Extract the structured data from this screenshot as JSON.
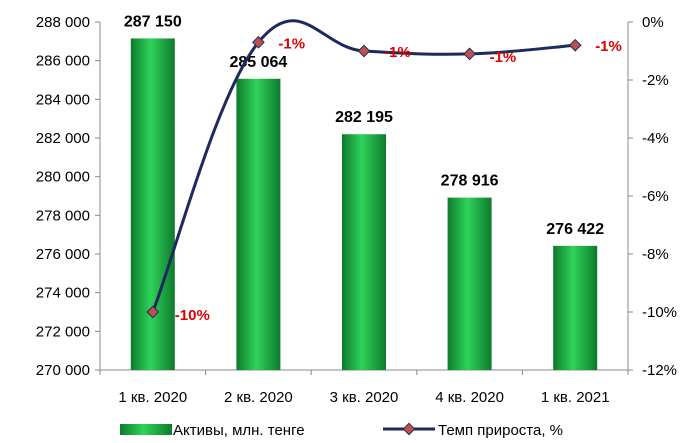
{
  "chart_data": {
    "type": "bar",
    "categories": [
      "1 кв. 2020",
      "2 кв. 2020",
      "3 кв. 2020",
      "4 кв. 2020",
      "1 кв. 2021"
    ],
    "series": [
      {
        "name": "Активы, млн. тенге",
        "type": "bar",
        "axis": "left",
        "values": [
          287150,
          285064,
          282195,
          278916,
          276422
        ],
        "labels": [
          "287 150",
          "285 064",
          "282 195",
          "278 916",
          "276 422"
        ]
      },
      {
        "name": "Темп прироста, %",
        "type": "line",
        "axis": "right",
        "values": [
          -10.0,
          -0.7,
          -1.0,
          -1.1,
          -0.8
        ],
        "labels": [
          "-10%",
          "-1%",
          "-1%",
          "-1%",
          "-1%"
        ]
      }
    ],
    "y_left": {
      "min": 270000,
      "max": 288000,
      "step": 2000,
      "tick_labels": [
        "270 000",
        "272 000",
        "274 000",
        "276 000",
        "278 000",
        "280 000",
        "282 000",
        "284 000",
        "286 000",
        "288 000"
      ]
    },
    "y_right": {
      "min": -12,
      "max": 0,
      "step": 2,
      "tick_labels": [
        "-12%",
        "-10%",
        "-8%",
        "-6%",
        "-4%",
        "-2%",
        "0%"
      ]
    },
    "legend_position": "bottom",
    "grid": false,
    "colors": {
      "bar": "#1fb84a",
      "bar_dark": "#0e7a2c",
      "line": "#1f2a5c",
      "marker": "#c0504d",
      "point_label": "#e00000"
    }
  }
}
